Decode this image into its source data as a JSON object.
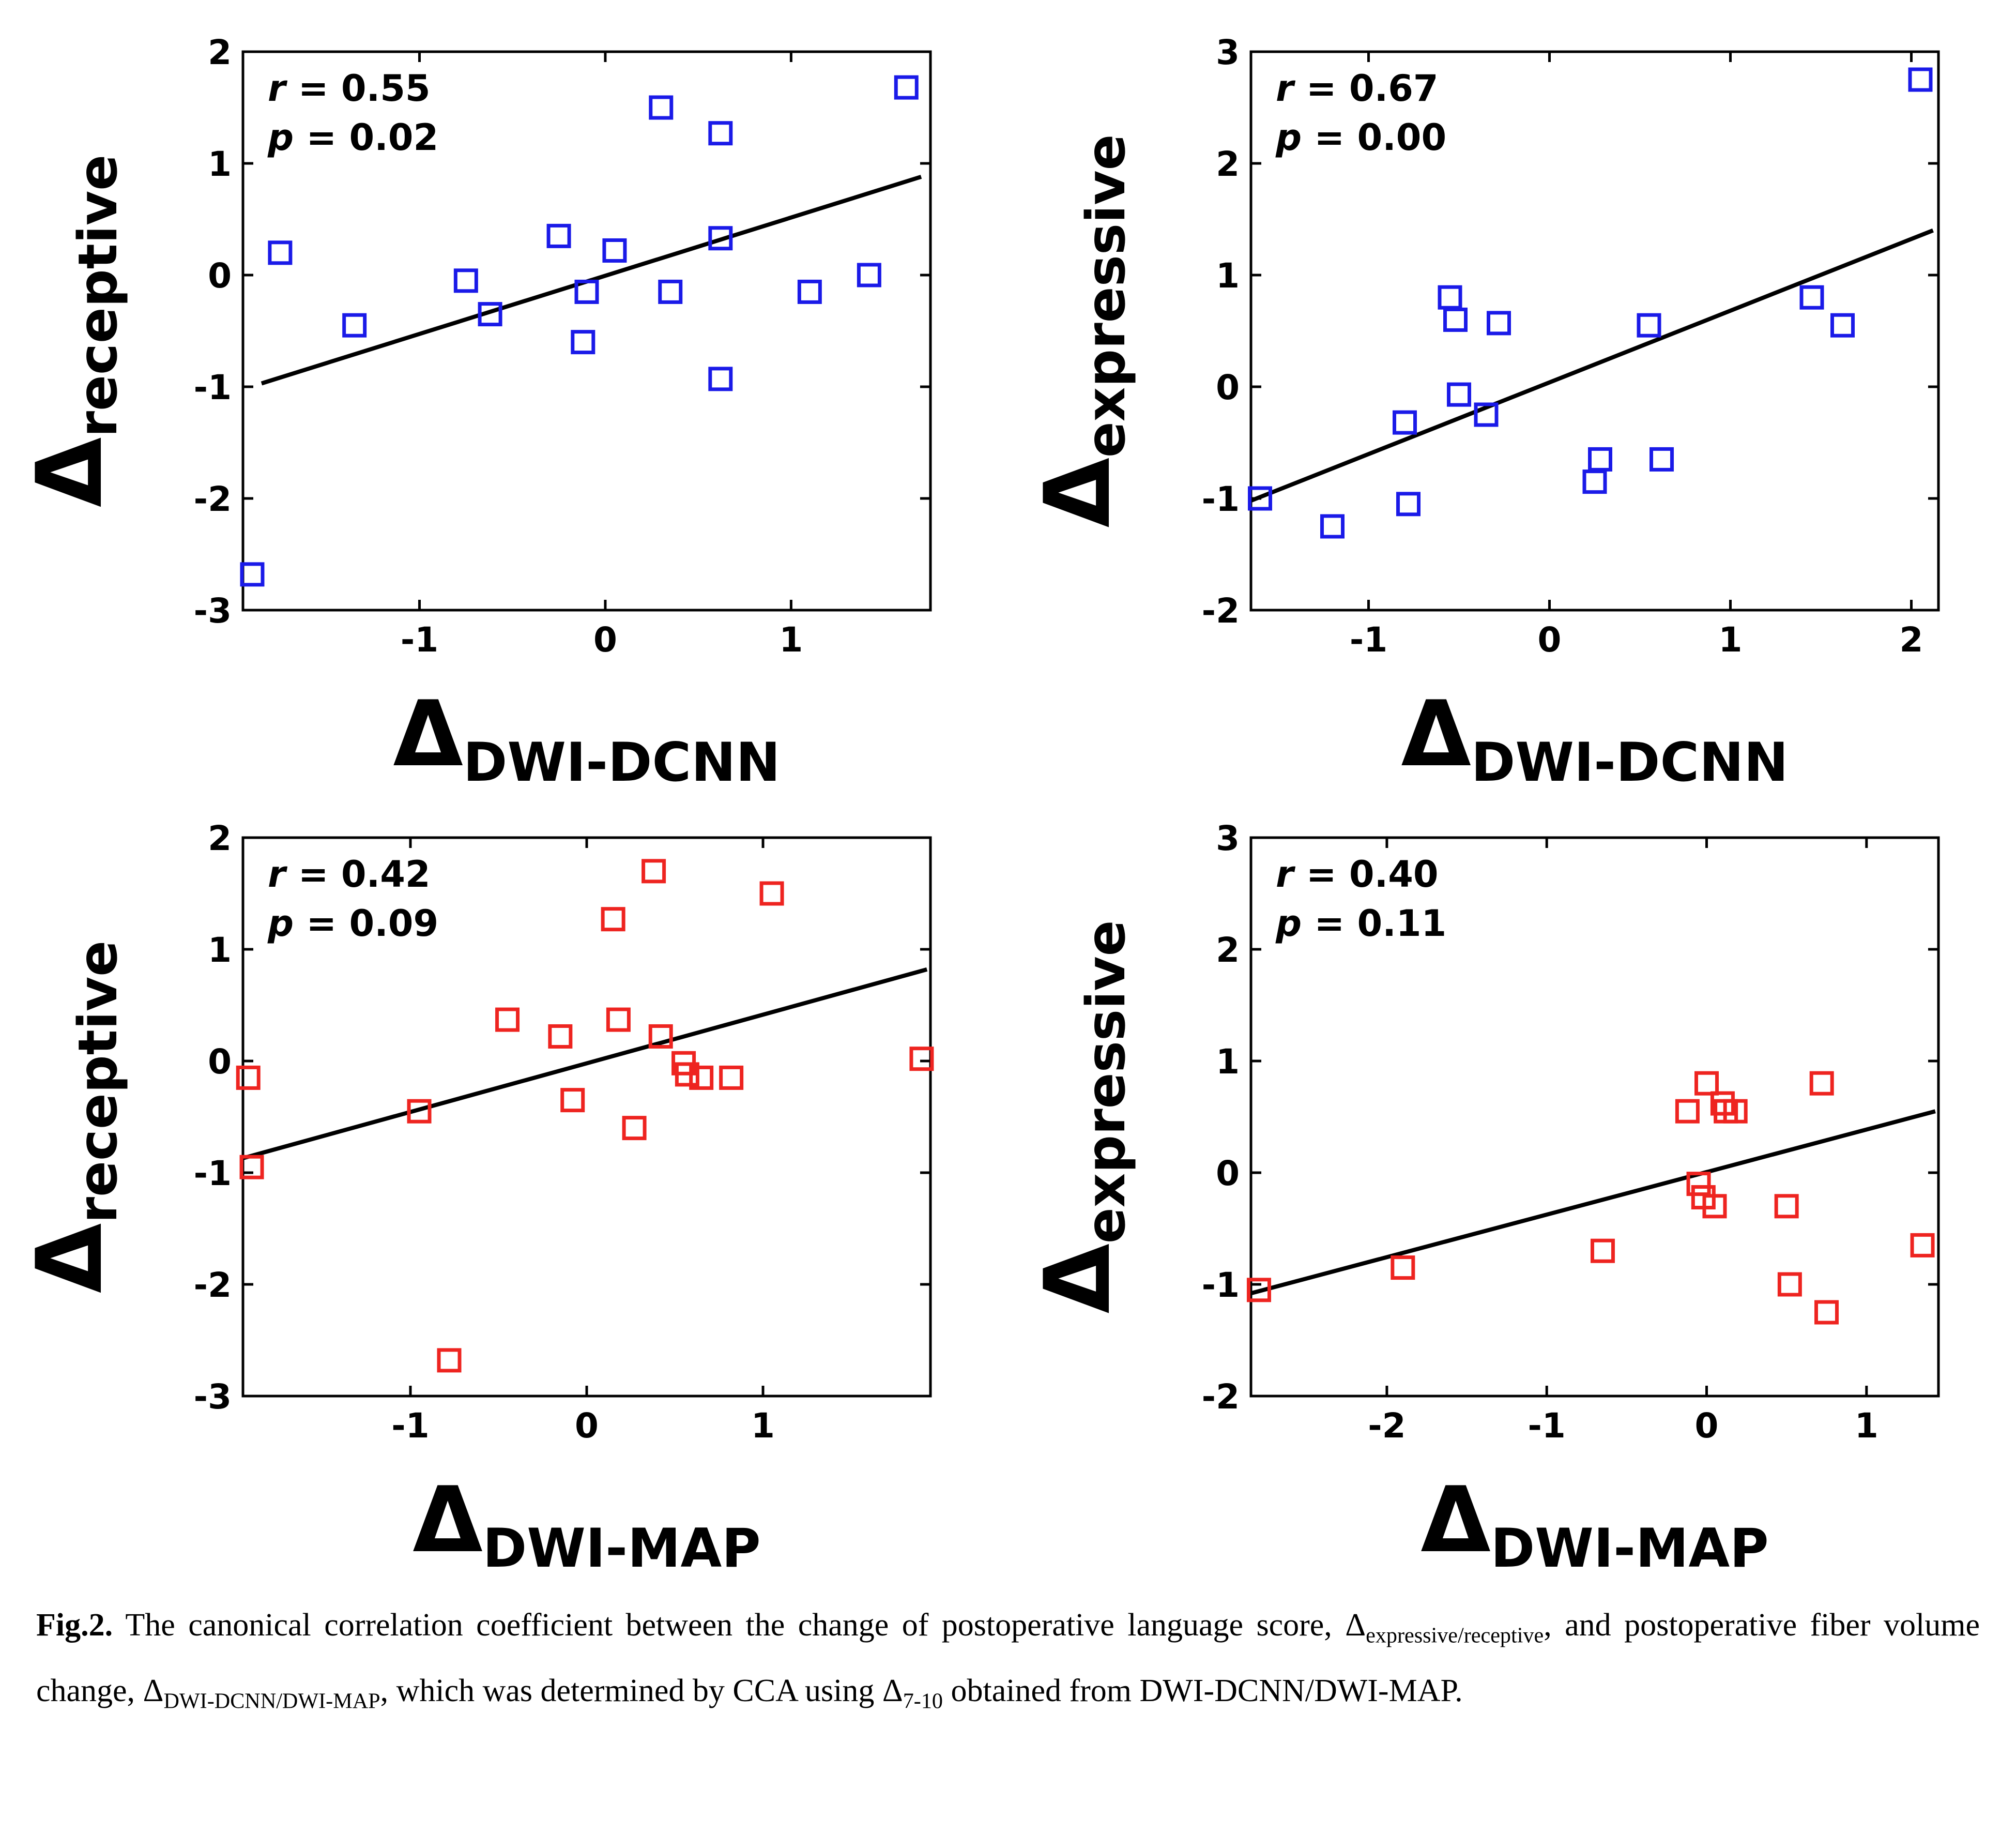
{
  "page": {
    "background": "#ffffff",
    "text_color": "#000000"
  },
  "chart_data": [
    {
      "type": "scatter",
      "position": "top-left",
      "marker_color": "#1a1ae8",
      "marker_shape": "open-square",
      "line_color": "#000000",
      "annotation": {
        "r_label": "r",
        "r_value": "0.55",
        "p_label": "p",
        "p_value": "0.02"
      },
      "xlabel": {
        "symbol": "Δ",
        "subscript": "DWI-DCNN"
      },
      "ylabel": {
        "symbol": "Δ",
        "subscript": "receptive"
      },
      "xlim": [
        -1.95,
        1.75
      ],
      "ylim": [
        -3,
        2
      ],
      "xticks": [
        -1,
        0,
        1
      ],
      "yticks": [
        -3,
        -2,
        -1,
        0,
        1,
        2
      ],
      "points": [
        [
          -1.75,
          0.2
        ],
        [
          -1.9,
          -2.68
        ],
        [
          -1.35,
          -0.45
        ],
        [
          -0.75,
          -0.05
        ],
        [
          -0.62,
          -0.35
        ],
        [
          -0.25,
          0.35
        ],
        [
          -0.1,
          -0.15
        ],
        [
          -0.12,
          -0.6
        ],
        [
          0.05,
          0.22
        ],
        [
          0.3,
          1.5
        ],
        [
          0.35,
          -0.15
        ],
        [
          0.62,
          1.27
        ],
        [
          0.62,
          0.33
        ],
        [
          0.62,
          -0.93
        ],
        [
          1.1,
          -0.15
        ],
        [
          1.42,
          0.0
        ],
        [
          1.62,
          1.68
        ]
      ],
      "trend_line": {
        "x": [
          -1.85,
          1.7
        ],
        "y": [
          -0.97,
          0.88
        ]
      }
    },
    {
      "type": "scatter",
      "position": "top-right",
      "marker_color": "#1a1ae8",
      "marker_shape": "open-square",
      "line_color": "#000000",
      "annotation": {
        "r_label": "r",
        "r_value": "0.67",
        "p_label": "p",
        "p_value": "0.00"
      },
      "xlabel": {
        "symbol": "Δ",
        "subscript": "DWI-DCNN"
      },
      "ylabel": {
        "symbol": "Δ",
        "subscript": "expressive"
      },
      "xlim": [
        -1.65,
        2.15
      ],
      "ylim": [
        -2,
        3
      ],
      "xticks": [
        -1,
        0,
        1,
        2
      ],
      "yticks": [
        -2,
        -1,
        0,
        1,
        2,
        3
      ],
      "points": [
        [
          -1.6,
          -1.0
        ],
        [
          -1.2,
          -1.25
        ],
        [
          -0.8,
          -0.32
        ],
        [
          -0.78,
          -1.05
        ],
        [
          -0.55,
          0.8
        ],
        [
          -0.52,
          0.6
        ],
        [
          -0.5,
          -0.07
        ],
        [
          -0.35,
          -0.25
        ],
        [
          -0.28,
          0.57
        ],
        [
          0.25,
          -0.85
        ],
        [
          0.28,
          -0.65
        ],
        [
          0.55,
          0.55
        ],
        [
          0.62,
          -0.65
        ],
        [
          1.45,
          0.8
        ],
        [
          1.62,
          0.55
        ],
        [
          2.05,
          2.75
        ]
      ],
      "trend_line": {
        "x": [
          -1.65,
          2.12
        ],
        "y": [
          -1.02,
          1.4
        ]
      }
    },
    {
      "type": "scatter",
      "position": "bottom-left",
      "marker_color": "#ee2420",
      "marker_shape": "open-square",
      "line_color": "#000000",
      "annotation": {
        "r_label": "r",
        "r_value": "0.42",
        "p_label": "p",
        "p_value": "0.09"
      },
      "xlabel": {
        "symbol": "Δ",
        "subscript": "DWI-MAP"
      },
      "ylabel": {
        "symbol": "Δ",
        "subscript": "receptive"
      },
      "xlim": [
        -1.95,
        1.95
      ],
      "ylim": [
        -3,
        2
      ],
      "xticks": [
        -1,
        0,
        1
      ],
      "yticks": [
        -3,
        -2,
        -1,
        0,
        1,
        2
      ],
      "points": [
        [
          -1.92,
          -0.15
        ],
        [
          -1.9,
          -0.95
        ],
        [
          -0.95,
          -0.45
        ],
        [
          -0.78,
          -2.68
        ],
        [
          -0.45,
          0.37
        ],
        [
          -0.15,
          0.22
        ],
        [
          -0.08,
          -0.35
        ],
        [
          0.15,
          1.27
        ],
        [
          0.18,
          0.37
        ],
        [
          0.27,
          -0.6
        ],
        [
          0.38,
          1.7
        ],
        [
          0.42,
          0.22
        ],
        [
          0.55,
          -0.02
        ],
        [
          0.57,
          -0.12
        ],
        [
          0.65,
          -0.15
        ],
        [
          0.82,
          -0.15
        ],
        [
          1.05,
          1.5
        ],
        [
          1.9,
          0.02
        ]
      ],
      "trend_line": {
        "x": [
          -1.95,
          1.93
        ],
        "y": [
          -0.87,
          0.82
        ]
      }
    },
    {
      "type": "scatter",
      "position": "bottom-right",
      "marker_color": "#ee2420",
      "marker_shape": "open-square",
      "line_color": "#000000",
      "annotation": {
        "r_label": "r",
        "r_value": "0.40",
        "p_label": "p",
        "p_value": "0.11"
      },
      "xlabel": {
        "symbol": "Δ",
        "subscript": "DWI-MAP"
      },
      "ylabel": {
        "symbol": "Δ",
        "subscript": "expressive"
      },
      "xlim": [
        -2.85,
        1.45
      ],
      "ylim": [
        -2,
        3
      ],
      "xticks": [
        -2,
        -1,
        0,
        1
      ],
      "yticks": [
        -2,
        -1,
        0,
        1,
        2,
        3
      ],
      "points": [
        [
          -2.8,
          -1.05
        ],
        [
          -1.9,
          -0.85
        ],
        [
          -0.65,
          -0.7
        ],
        [
          -0.12,
          0.55
        ],
        [
          -0.05,
          -0.1
        ],
        [
          0.0,
          0.8
        ],
        [
          -0.02,
          -0.22
        ],
        [
          0.05,
          -0.3
        ],
        [
          0.1,
          0.62
        ],
        [
          0.12,
          0.55
        ],
        [
          0.18,
          0.55
        ],
        [
          0.5,
          -0.3
        ],
        [
          0.52,
          -1.0
        ],
        [
          0.72,
          0.8
        ],
        [
          0.75,
          -1.25
        ],
        [
          1.35,
          -0.65
        ]
      ],
      "trend_line": {
        "x": [
          -2.85,
          1.43
        ],
        "y": [
          -1.08,
          0.55
        ]
      }
    }
  ],
  "caption": {
    "segments": [
      {
        "text": "Fig.2.",
        "bold": true
      },
      {
        "text": " The canonical correlation coefficient between the change of postoperative language score, "
      },
      {
        "text": "Δ"
      },
      {
        "text": "expressive/receptive",
        "sub": true
      },
      {
        "text": ", and postoperative fiber volume change, "
      },
      {
        "text": "Δ"
      },
      {
        "text": "DWI-DCNN/DWI-MAP",
        "sub": true
      },
      {
        "text": ", which was determined by CCA using "
      },
      {
        "text": "Δ"
      },
      {
        "text": "7-10",
        "sub": true
      },
      {
        "text": " obtained from DWI-DCNN/DWI-MAP."
      }
    ]
  }
}
